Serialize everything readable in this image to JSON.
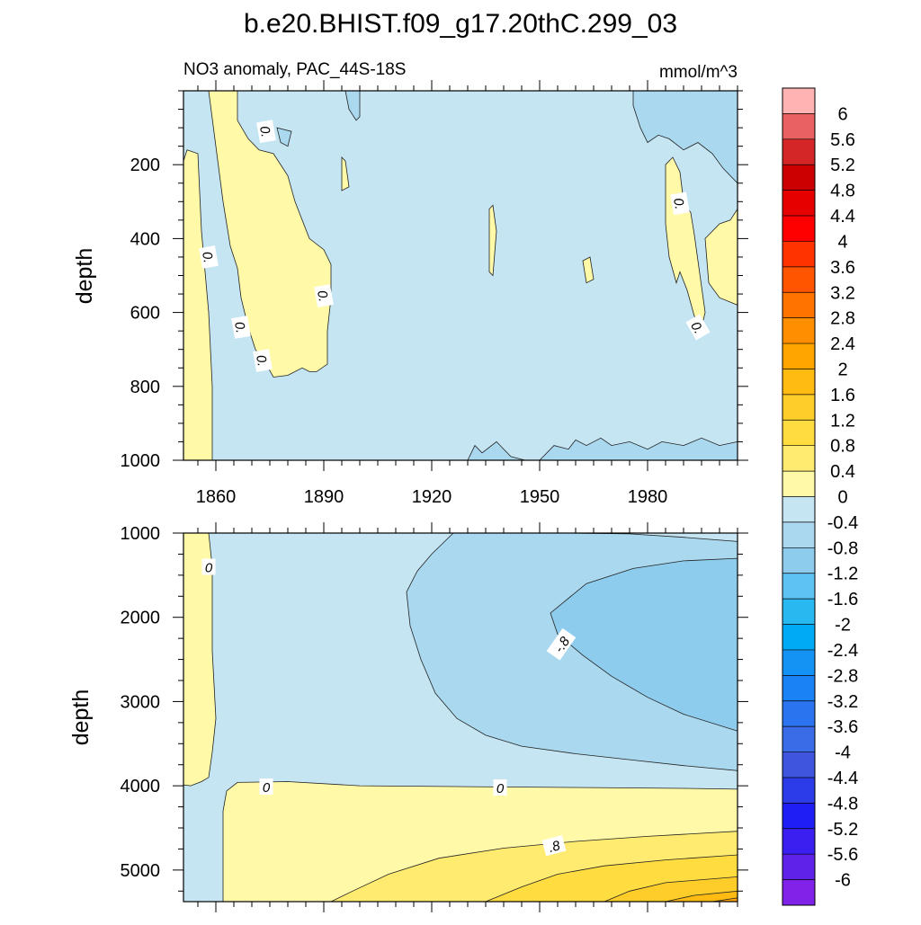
{
  "title": "b.e20.BHIST.f09_g17.20thC.299_03",
  "chart_data": {
    "type": "contour",
    "subtitle": "NO3 anomaly, PAC_44S-18S",
    "units": "mmol/m^3",
    "xlim": [
      1851,
      2005
    ],
    "x_ticks": [
      1860,
      1890,
      1920,
      1950,
      1980
    ],
    "panels": [
      {
        "ylabel": "depth",
        "ylim": [
          0,
          1000
        ],
        "y_ticks": [
          200,
          400,
          600,
          800,
          1000
        ],
        "contour_labels": [
          {
            "text": "0.",
            "x": 1874,
            "y": 110,
            "rot": 80
          },
          {
            "text": "0.",
            "x": 1858,
            "y": 450,
            "rot": 80
          },
          {
            "text": "0.",
            "x": 1890,
            "y": 555,
            "rot": 80
          },
          {
            "text": "0.",
            "x": 1867,
            "y": 640,
            "rot": 80
          },
          {
            "text": "0.",
            "x": 1873,
            "y": 730,
            "rot": 80
          },
          {
            "text": "0.",
            "x": 1989,
            "y": 305,
            "rot": 80
          },
          {
            "text": "0.",
            "x": 1994,
            "y": 640,
            "rot": 60
          }
        ]
      },
      {
        "ylabel": "depth",
        "ylim": [
          1000,
          5375
        ],
        "y_ticks": [
          1000,
          2000,
          3000,
          4000,
          5000
        ],
        "contour_labels": [
          {
            "text": "0",
            "x": 1858,
            "y": 1400,
            "rot": 0
          },
          {
            "text": "0",
            "x": 1874,
            "y": 4010,
            "rot": 0
          },
          {
            "text": "0",
            "x": 1939,
            "y": 4020,
            "rot": 0
          },
          {
            "text": "-.8",
            "x": 1956,
            "y": 2320,
            "rot": -55
          },
          {
            "text": ".8",
            "x": 1954,
            "y": 4710,
            "rot": -15
          }
        ]
      }
    ],
    "colorbar": {
      "labels": [
        "6",
        "5.6",
        "5.2",
        "4.8",
        "4.4",
        "4",
        "3.6",
        "3.2",
        "2.8",
        "2.4",
        "2",
        "1.6",
        "1.2",
        "0.8",
        "0.4",
        "0",
        "-0.4",
        "-0.8",
        "-1.2",
        "-1.6",
        "-2",
        "-2.4",
        "-2.8",
        "-3.2",
        "-3.6",
        "-4",
        "-4.4",
        "-4.8",
        "-5.2",
        "-5.6",
        "-6"
      ],
      "colors": [
        "#ffb3b3",
        "#e86262",
        "#d42626",
        "#cc0000",
        "#e60000",
        "#ff0000",
        "#ff3300",
        "#ff5500",
        "#ff7300",
        "#ff8f00",
        "#ffa500",
        "#ffbb11",
        "#ffcd2a",
        "#ffdd40",
        "#ffeb70",
        "#fff9a8",
        "#c5e5f3",
        "#aad9ef",
        "#8ecced",
        "#5fc3f2",
        "#28b9f0",
        "#00aaf5",
        "#1593f5",
        "#1a82f5",
        "#2b74f0",
        "#3b6ce8",
        "#3f55de",
        "#2c3ce8",
        "#1f1ff5",
        "#3a1ff0",
        "#5f22e8",
        "#8122e8"
      ]
    },
    "fill_colors": {
      "neg_0_4": "#c5e5f3",
      "neg_0_8": "#aad9ef",
      "neg_1_2": "#8ecced",
      "pos_0_4": "#fff9a8",
      "pos_0_8": "#ffeb70",
      "pos_1_2": "#ffdd40",
      "pos_1_6": "#ffcd2a",
      "pos_2_0": "#ffbb11",
      "pos_2_4": "#ffa500"
    }
  }
}
